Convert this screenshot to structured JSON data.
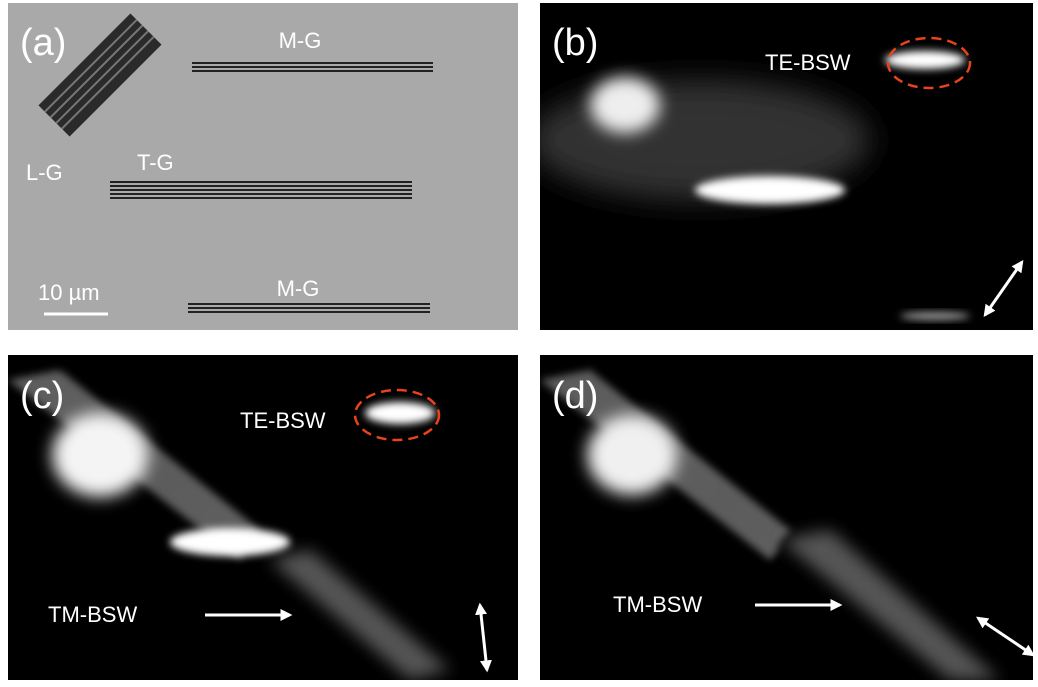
{
  "panels": [
    {
      "label": "(a)",
      "texts": [
        "M-G",
        "L-G",
        "T-G",
        "10 µm",
        "M-G"
      ]
    },
    {
      "label": "(b)",
      "texts": [
        "TE-BSW"
      ]
    },
    {
      "label": "(c)",
      "texts": [
        "TE-BSW",
        "TM-BSW"
      ]
    },
    {
      "label": "(d)",
      "texts": [
        "TM-BSW"
      ]
    }
  ]
}
